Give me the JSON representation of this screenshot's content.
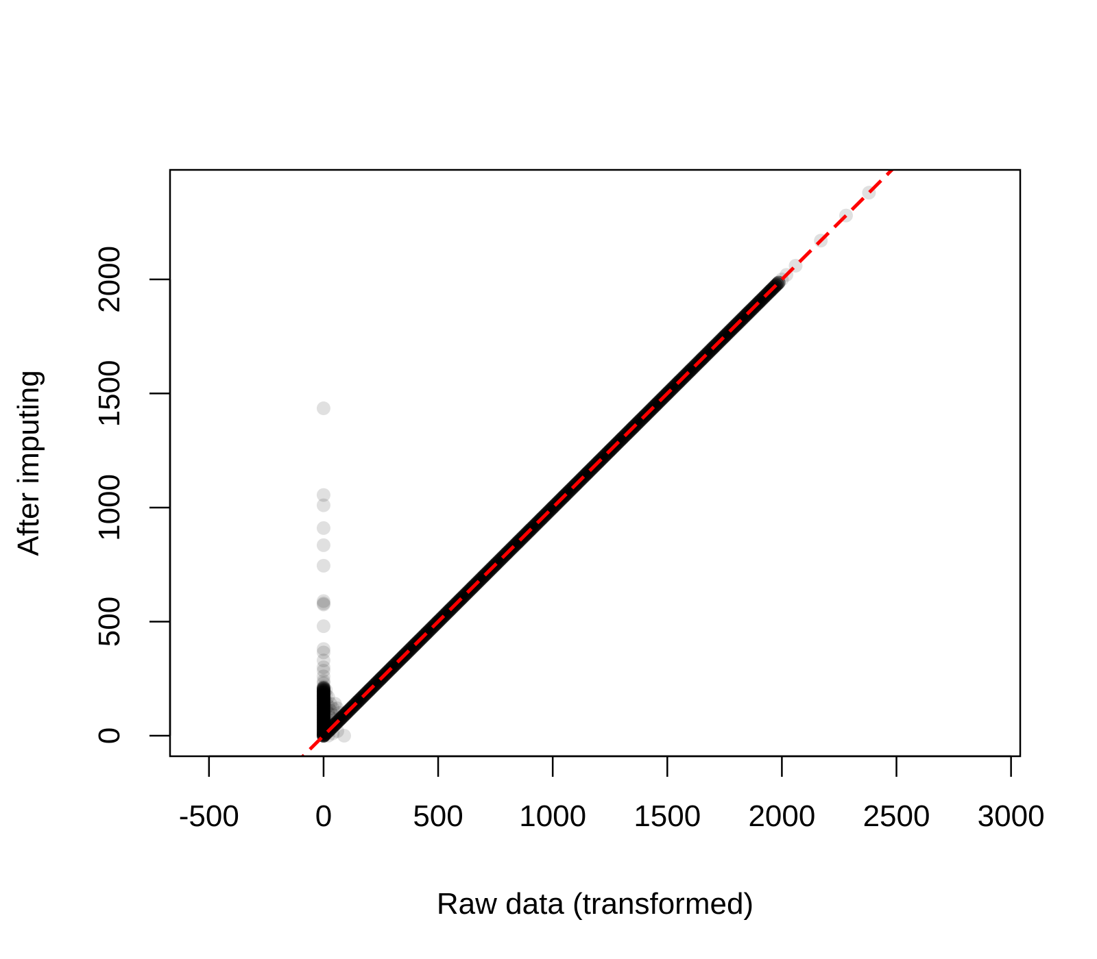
{
  "chart_data": {
    "type": "scatter",
    "title": "",
    "xlabel": "Raw data (transformed)",
    "ylabel": "After imputing",
    "xlim": [
      -670,
      3040
    ],
    "ylim": [
      -90,
      2480
    ],
    "xticks": [
      -500,
      0,
      500,
      1000,
      1500,
      2000,
      2500,
      3000
    ],
    "yticks": [
      0,
      500,
      1000,
      1500,
      2000
    ],
    "grid": false,
    "point_color": "#000000",
    "point_alpha": 0.12,
    "reference_line": {
      "slope": 1,
      "intercept": 0,
      "style": "dashed",
      "color": "#ff0000"
    },
    "series": [
      {
        "points": [
          [
            0,
            1435
          ],
          [
            0,
            1055
          ],
          [
            0,
            1010
          ],
          [
            0,
            910
          ],
          [
            0,
            835
          ],
          [
            0,
            745
          ],
          [
            0,
            590
          ],
          [
            0,
            580
          ],
          [
            0,
            575
          ],
          [
            0,
            480
          ],
          [
            0,
            380
          ],
          [
            0,
            365
          ],
          [
            0,
            330
          ],
          [
            0,
            300
          ],
          [
            0,
            285
          ],
          [
            0,
            260
          ],
          [
            0,
            240
          ],
          [
            0,
            230
          ],
          [
            0,
            215
          ],
          [
            0,
            200
          ],
          [
            0,
            190
          ],
          [
            0,
            180
          ],
          [
            0,
            170
          ],
          [
            0,
            160
          ],
          [
            0,
            150
          ],
          [
            0,
            140
          ],
          [
            0,
            130
          ],
          [
            0,
            120
          ],
          [
            0,
            110
          ],
          [
            0,
            100
          ],
          [
            0,
            90
          ],
          [
            0,
            80
          ],
          [
            0,
            70
          ],
          [
            0,
            60
          ],
          [
            0,
            50
          ],
          [
            0,
            40
          ],
          [
            0,
            30
          ],
          [
            0,
            20
          ],
          [
            0,
            10
          ],
          [
            0,
            0
          ],
          [
            10,
            200
          ],
          [
            10,
            180
          ],
          [
            10,
            150
          ],
          [
            10,
            120
          ],
          [
            10,
            90
          ],
          [
            10,
            60
          ],
          [
            10,
            30
          ],
          [
            20,
            170
          ],
          [
            20,
            130
          ],
          [
            20,
            100
          ],
          [
            20,
            70
          ],
          [
            20,
            40
          ],
          [
            30,
            140
          ],
          [
            30,
            110
          ],
          [
            30,
            80
          ],
          [
            30,
            50
          ],
          [
            40,
            120
          ],
          [
            40,
            90
          ],
          [
            50,
            140
          ],
          [
            60,
            120
          ],
          [
            70,
            100
          ],
          [
            20,
            0
          ],
          [
            40,
            10
          ],
          [
            60,
            20
          ],
          [
            90,
            0
          ],
          [
            0,
            0
          ],
          [
            25,
            25
          ],
          [
            50,
            50
          ],
          [
            75,
            75
          ],
          [
            100,
            100
          ],
          [
            150,
            150
          ],
          [
            200,
            200
          ],
          [
            250,
            250
          ],
          [
            300,
            300
          ],
          [
            350,
            350
          ],
          [
            400,
            400
          ],
          [
            450,
            450
          ],
          [
            500,
            500
          ],
          [
            550,
            550
          ],
          [
            600,
            600
          ],
          [
            650,
            650
          ],
          [
            700,
            700
          ],
          [
            750,
            750
          ],
          [
            800,
            800
          ],
          [
            850,
            850
          ],
          [
            900,
            900
          ],
          [
            950,
            950
          ],
          [
            1000,
            1000
          ],
          [
            1050,
            1050
          ],
          [
            1100,
            1100
          ],
          [
            1150,
            1150
          ],
          [
            1200,
            1200
          ],
          [
            1250,
            1250
          ],
          [
            1300,
            1300
          ],
          [
            1350,
            1350
          ],
          [
            1400,
            1400
          ],
          [
            1450,
            1450
          ],
          [
            1500,
            1500
          ],
          [
            1550,
            1550
          ],
          [
            1600,
            1600
          ],
          [
            1650,
            1650
          ],
          [
            1700,
            1700
          ],
          [
            1750,
            1750
          ],
          [
            1800,
            1800
          ],
          [
            1850,
            1850
          ],
          [
            1900,
            1900
          ],
          [
            1950,
            1950
          ],
          [
            2000,
            2000
          ],
          [
            2020,
            2020
          ],
          [
            2060,
            2060
          ],
          [
            2170,
            2170
          ],
          [
            2280,
            2280
          ],
          [
            2380,
            2380
          ]
        ]
      }
    ]
  }
}
